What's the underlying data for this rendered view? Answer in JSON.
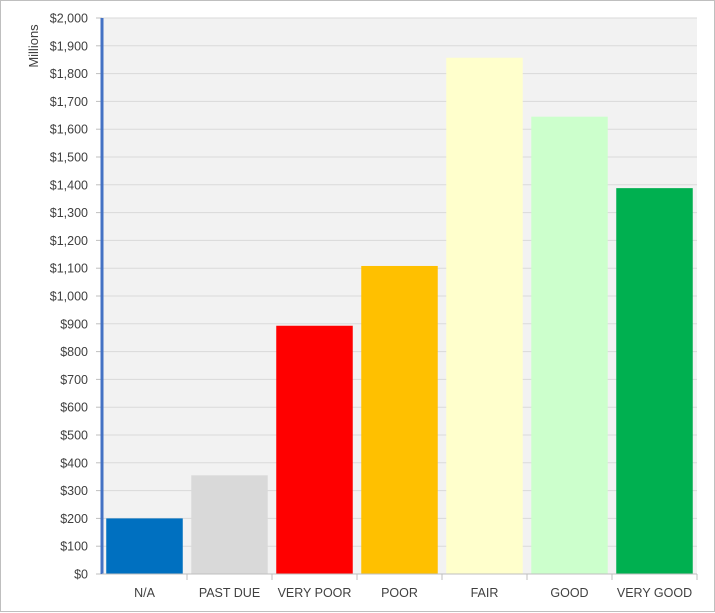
{
  "chart_data": {
    "type": "bar",
    "title": "",
    "xlabel": "",
    "ylabel": "Millions",
    "ylim": [
      0,
      2000
    ],
    "ytick_step": 100,
    "ytick_prefix": "$",
    "grid": true,
    "legend": "none",
    "categories": [
      "N/A",
      "PAST DUE",
      "VERY POOR",
      "POOR",
      "FAIR",
      "GOOD",
      "VERY GOOD"
    ],
    "values": [
      200,
      355,
      893,
      1108,
      1857,
      1645,
      1388
    ],
    "colors": [
      "#0070c0",
      "#d9d9d9",
      "#ff0000",
      "#ffc000",
      "#ffffcc",
      "#ccffcc",
      "#00b050"
    ],
    "plot_background": "#f2f2f2",
    "axis_color": "#4472c4"
  }
}
